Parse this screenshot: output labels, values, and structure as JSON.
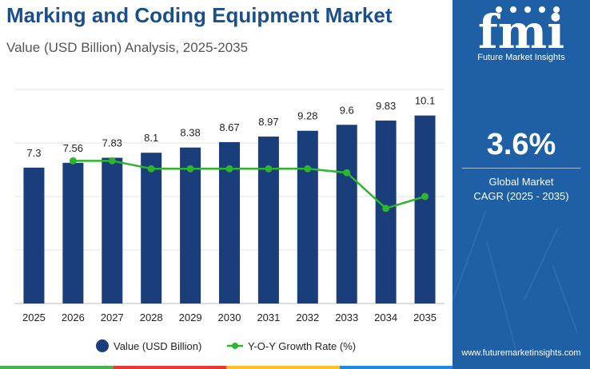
{
  "header": {
    "title": "Marking and Coding Equipment Market",
    "subtitle": "Value (USD Billion) Analysis, 2025-2035"
  },
  "sidebar": {
    "logo_text": "fmi",
    "logo_subtitle": "Future Market Insights",
    "cagr_value": "3.6%",
    "cagr_label_line1": "Global Market",
    "cagr_label_line2": "CAGR (2025 - 2035)",
    "website": "www.futuremarketinsights.com"
  },
  "colors": {
    "bar": "#1a3d7c",
    "line": "#2db52d",
    "sidebar": "#1e5fa5",
    "title": "#1a4f8b",
    "footer": [
      "#4caf50",
      "#e53935",
      "#fbc02d",
      "#1e88e5"
    ]
  },
  "chart_data": {
    "type": "bar",
    "categories": [
      "2025",
      "2026",
      "2027",
      "2028",
      "2029",
      "2030",
      "2031",
      "2032",
      "2033",
      "2034",
      "2035"
    ],
    "series": [
      {
        "name": "Value (USD Billion)",
        "type": "bar",
        "values": [
          7.3,
          7.56,
          7.83,
          8.1,
          8.38,
          8.67,
          8.97,
          9.28,
          9.6,
          9.83,
          10.1
        ],
        "labels": [
          "7.3",
          "7.56",
          "7.83",
          "8.1",
          "8.38",
          "8.67",
          "8.97",
          "9.28",
          "9.6",
          "9.83",
          "10.1"
        ]
      },
      {
        "name": "Y-O-Y Growth Rate (%)",
        "type": "line",
        "x": [
          "2026",
          "2027",
          "2028",
          "2029",
          "2030",
          "2031",
          "2032",
          "2033",
          "2034",
          "2035"
        ],
        "values": [
          3.6,
          3.6,
          3.4,
          3.4,
          3.4,
          3.4,
          3.4,
          3.3,
          2.4,
          2.7
        ]
      }
    ],
    "ylim": [
      0,
      11.5
    ],
    "y2lim": [
      0,
      5.4
    ],
    "grid": true,
    "legend_position": "bottom"
  }
}
